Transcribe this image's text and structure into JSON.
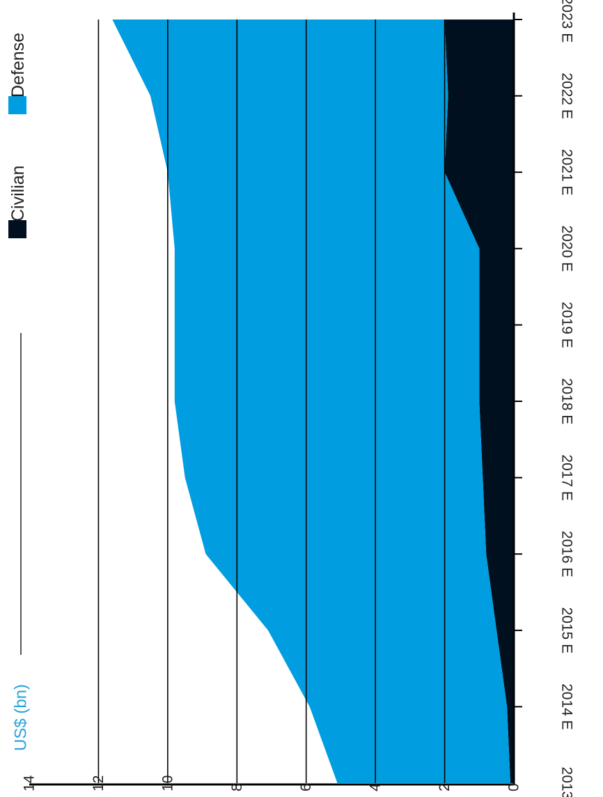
{
  "chart_data": {
    "type": "area",
    "stacked": true,
    "orientation": "rotated-90-clockwise",
    "unit_label": "US$ (bn)",
    "categories": [
      "2013",
      "2014 E",
      "2015 E",
      "2016 E",
      "2017 E",
      "2018 E",
      "2019 E",
      "2020 E",
      "2021 E",
      "2022 E",
      "2023 E"
    ],
    "series": [
      {
        "name": "Civilian",
        "color": "#00101f",
        "values": [
          0.1,
          0.2,
          0.5,
          0.8,
          0.9,
          1.0,
          1.0,
          1.0,
          2.0,
          1.9,
          2.0
        ]
      },
      {
        "name": "Defense",
        "color": "#009ee0",
        "values": [
          5.0,
          5.7,
          6.6,
          8.1,
          8.6,
          8.8,
          8.8,
          8.8,
          8.0,
          8.6,
          9.6
        ]
      }
    ],
    "y_ticks": [
      "0",
      "2",
      "4",
      "6",
      "8",
      "10",
      "12",
      "14"
    ],
    "ylim": [
      0,
      14
    ],
    "grid": true,
    "legend_position": "top-right",
    "colors": {
      "unit_label": "#29a3dd",
      "axis": "#000000",
      "grid": "#000000"
    }
  }
}
